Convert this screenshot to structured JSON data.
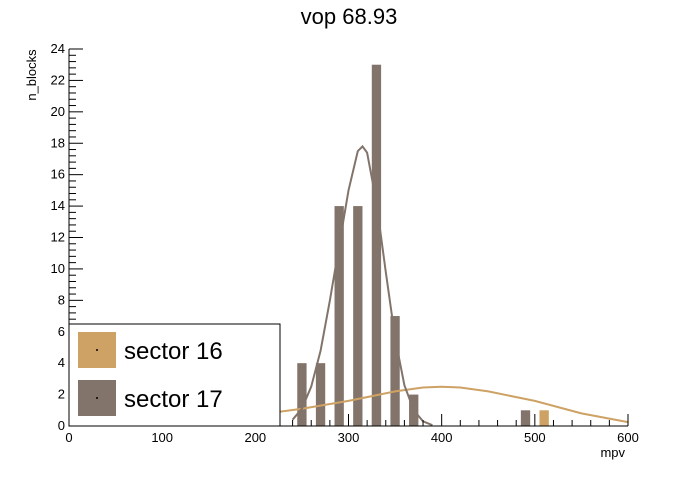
{
  "chart_data": {
    "type": "bar",
    "title": "vop 68.93",
    "xlabel": "mpv",
    "ylabel": "n_blocks",
    "xlim": [
      0,
      600
    ],
    "ylim": [
      0,
      24
    ],
    "x_ticks": [
      0,
      100,
      200,
      300,
      400,
      500,
      600
    ],
    "y_ticks": [
      0,
      2,
      4,
      6,
      8,
      10,
      12,
      14,
      16,
      18,
      20,
      22,
      24
    ],
    "bin_width": 20,
    "grid": false,
    "legend_position": "bottom-left",
    "series": [
      {
        "name": "sector 16",
        "color": "#cda264",
        "bins": [
          {
            "x": 320,
            "value": 2
          },
          {
            "x": 500,
            "value": 1
          }
        ],
        "fit": [
          [
            150,
            0.4
          ],
          [
            200,
            0.7
          ],
          [
            250,
            1.1
          ],
          [
            300,
            1.6
          ],
          [
            350,
            2.2
          ],
          [
            380,
            2.45
          ],
          [
            400,
            2.5
          ],
          [
            420,
            2.45
          ],
          [
            450,
            2.2
          ],
          [
            500,
            1.6
          ],
          [
            550,
            0.8
          ],
          [
            600,
            0.25
          ]
        ]
      },
      {
        "name": "sector 17",
        "color": "#82746a",
        "bins": [
          {
            "x": 240,
            "value": 4
          },
          {
            "x": 260,
            "value": 4
          },
          {
            "x": 280,
            "value": 14
          },
          {
            "x": 300,
            "value": 14
          },
          {
            "x": 320,
            "value": 23
          },
          {
            "x": 340,
            "value": 7
          },
          {
            "x": 360,
            "value": 2
          },
          {
            "x": 480,
            "value": 1
          }
        ],
        "fit": [
          [
            240,
            0.4
          ],
          [
            250,
            1.1
          ],
          [
            260,
            2.5
          ],
          [
            270,
            4.8
          ],
          [
            280,
            8.0
          ],
          [
            290,
            11.5
          ],
          [
            300,
            15.0
          ],
          [
            310,
            17.5
          ],
          [
            315,
            17.8
          ],
          [
            320,
            17.4
          ],
          [
            330,
            14.2
          ],
          [
            340,
            9.8
          ],
          [
            350,
            5.6
          ],
          [
            360,
            2.6
          ],
          [
            370,
            1.0
          ],
          [
            380,
            0.3
          ],
          [
            390,
            0.05
          ]
        ]
      }
    ]
  }
}
